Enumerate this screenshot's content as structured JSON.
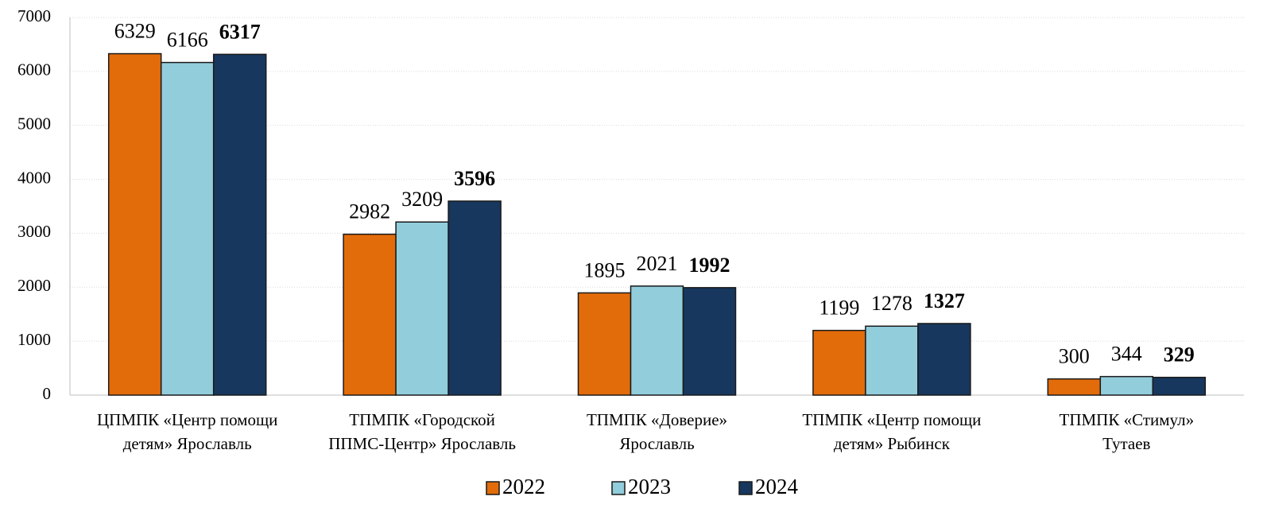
{
  "chart_data": {
    "type": "bar",
    "categories": [
      [
        "ЦПМПК «Центр помощи",
        "детям» Ярославль"
      ],
      [
        "ТПМПК «Городской",
        "ППМС-Центр» Ярославль"
      ],
      [
        "ТПМПК «Доверие»",
        "Ярославль"
      ],
      [
        "ТПМПК «Центр помощи",
        "детям» Рыбинск"
      ],
      [
        "ТПМПК «Стимул»",
        "Тутаев"
      ]
    ],
    "series": [
      {
        "name": "2022",
        "color": "#e36c0a",
        "values": [
          6329,
          2982,
          1895,
          1199,
          300
        ]
      },
      {
        "name": "2023",
        "color": "#92cddc",
        "values": [
          6166,
          3209,
          2021,
          1278,
          344
        ]
      },
      {
        "name": "2024",
        "color": "#17375e",
        "values": [
          6317,
          3596,
          1992,
          1327,
          329
        ],
        "label_bold": true
      }
    ],
    "ylim": [
      0,
      7000
    ],
    "yticks": [
      0,
      1000,
      2000,
      3000,
      4000,
      5000,
      6000,
      7000
    ],
    "grid": true,
    "legend": "bottom"
  }
}
